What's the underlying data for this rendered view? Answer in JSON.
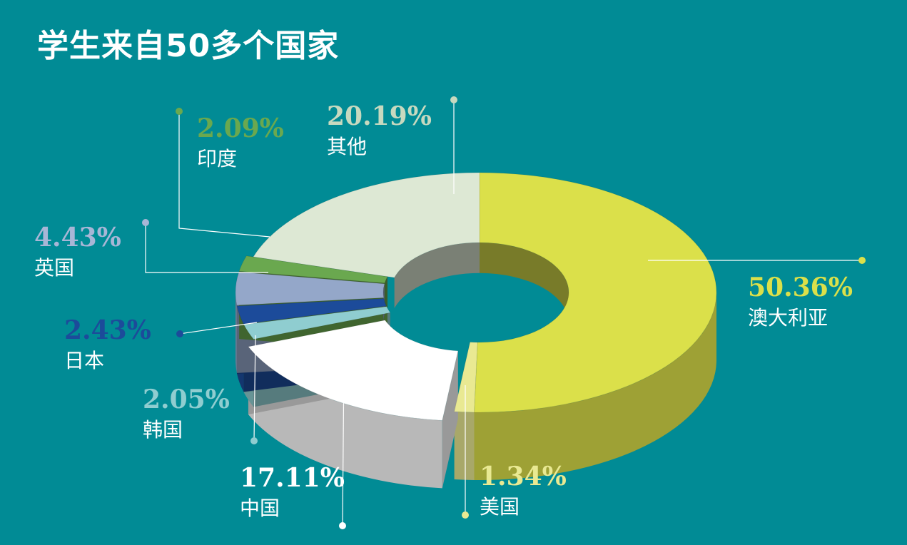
{
  "title": "学生来自50多个国家",
  "chart_data": {
    "type": "pie",
    "variant": "3d-donut",
    "title": "学生来自50多个国家",
    "slices": [
      {
        "label": "澳大利亚",
        "value": 50.36,
        "value_label": "50.36%",
        "color": "#dbe04a"
      },
      {
        "label": "美国",
        "value": 1.34,
        "value_label": "1.34%",
        "color": "#e9e992"
      },
      {
        "label": "中国",
        "value": 17.11,
        "value_label": "17.11%",
        "color": "#ffffff"
      },
      {
        "label": "韩国",
        "value": 2.05,
        "value_label": "2.05%",
        "color": "#8fcdd0"
      },
      {
        "label": "日本",
        "value": 2.43,
        "value_label": "2.43%",
        "color": "#1c4b9a"
      },
      {
        "label": "英国",
        "value": 4.43,
        "value_label": "4.43%",
        "color": "#94a7c9"
      },
      {
        "label": "印度",
        "value": 2.09,
        "value_label": "2.09%",
        "color": "#6aa84f"
      },
      {
        "label": "其他",
        "value": 20.19,
        "value_label": "20.19%",
        "color": "#dde8d4"
      }
    ],
    "label_colors": {
      "澳大利亚": "#dbe04a",
      "美国": "#e9e992",
      "中国": "#ffffff",
      "韩国": "#8fcdd0",
      "日本": "#1c4b9a",
      "英国": "#a8b6d6",
      "印度": "#6aa84f",
      "其他": "#c7d9bf"
    },
    "background": "#018b95"
  }
}
